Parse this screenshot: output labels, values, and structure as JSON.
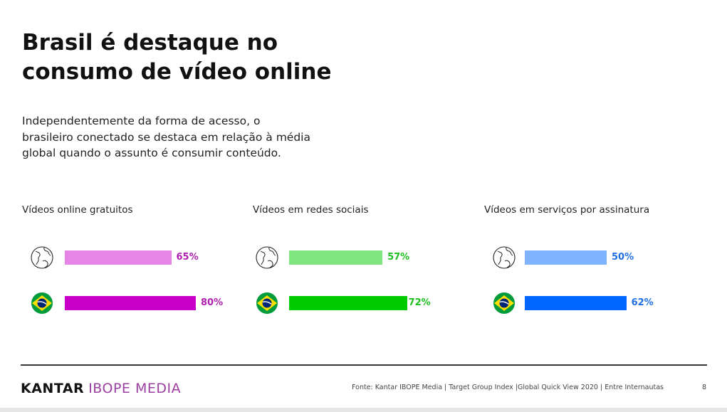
{
  "header": {
    "title_lines": [
      "Brasil é destaque no",
      "consumo de vídeo online"
    ],
    "intro_lines": [
      "Independentemente da forma de acesso, o",
      "brasileiro conectado se destaca em relação à média",
      "global quando o assunto é consumir conteúdo."
    ]
  },
  "icons": {
    "world": "globe-icon",
    "brazil": "brazil-flag-icon"
  },
  "chart_data": [
    {
      "type": "bar",
      "title": "Vídeos online gratuitos",
      "categories": [
        "globe-icon",
        "brazil-flag-icon"
      ],
      "values": [
        65,
        80
      ],
      "value_labels": [
        "65%",
        "80%"
      ],
      "colors": [
        "#e685e6",
        "#c800c8"
      ],
      "label_color": "#b01fb0",
      "xlim": [
        0,
        100
      ],
      "grid": false
    },
    {
      "type": "bar",
      "title": "Vídeos em redes sociais",
      "categories": [
        "globe-icon",
        "brazil-flag-icon"
      ],
      "values": [
        57,
        72
      ],
      "value_labels": [
        "57%",
        "72%"
      ],
      "colors": [
        "#7fe57f",
        "#00cc00"
      ],
      "label_color": "#1fbf1f",
      "xlim": [
        0,
        100
      ],
      "grid": false
    },
    {
      "type": "bar",
      "title": "Vídeos em serviços por assinatura",
      "categories": [
        "globe-icon",
        "brazil-flag-icon"
      ],
      "values": [
        50,
        62
      ],
      "value_labels": [
        "50%",
        "62%"
      ],
      "colors": [
        "#80b3ff",
        "#0066ff"
      ],
      "label_color": "#1f6fe0",
      "xlim": [
        0,
        100
      ],
      "grid": false
    }
  ],
  "footer": {
    "logo_main": "KANTAR",
    "logo_sub": "IBOPE MEDIA",
    "source": "Fonte: Kantar IBOPE Media | Target Group Index |Global Quick View 2020 | Entre Internautas",
    "page_number": "8"
  }
}
